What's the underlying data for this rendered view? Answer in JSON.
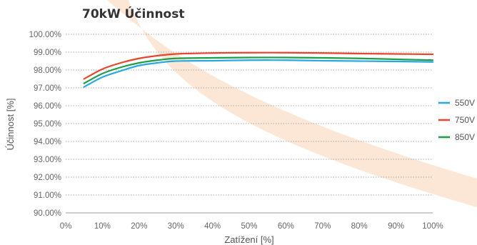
{
  "chart_data": {
    "type": "line",
    "title": "70kW Účinnost",
    "xlabel": "Zatížení [%]",
    "ylabel": "Účinnost [%]",
    "xlim": [
      0,
      100
    ],
    "ylim": [
      90,
      100
    ],
    "x_ticks": [
      "0%",
      "10%",
      "20%",
      "30%",
      "40%",
      "50%",
      "60%",
      "70%",
      "80%",
      "90%",
      "100%"
    ],
    "y_ticks": [
      "90.00%",
      "91.00%",
      "92.00%",
      "93.00%",
      "94.00%",
      "95.00%",
      "96.00%",
      "97.00%",
      "98.00%",
      "99.00%",
      "100.00%"
    ],
    "grid": "horizontal dotted",
    "legend_position": "right",
    "x": [
      5,
      10,
      15,
      20,
      25,
      30,
      40,
      50,
      60,
      70,
      80,
      90,
      100
    ],
    "series": [
      {
        "name": "550V",
        "color": "#29a9e1",
        "values": [
          97.05,
          97.6,
          97.95,
          98.25,
          98.4,
          98.5,
          98.52,
          98.55,
          98.55,
          98.52,
          98.5,
          98.48,
          98.45
        ]
      },
      {
        "name": "750V",
        "color": "#e8452c",
        "values": [
          97.5,
          98.05,
          98.4,
          98.65,
          98.8,
          98.9,
          98.95,
          98.97,
          98.97,
          98.95,
          98.92,
          98.9,
          98.88
        ]
      },
      {
        "name": "850V",
        "color": "#1f9e48",
        "values": [
          97.25,
          97.8,
          98.15,
          98.4,
          98.55,
          98.65,
          98.68,
          98.7,
          98.7,
          98.68,
          98.65,
          98.6,
          98.55
        ]
      }
    ]
  }
}
